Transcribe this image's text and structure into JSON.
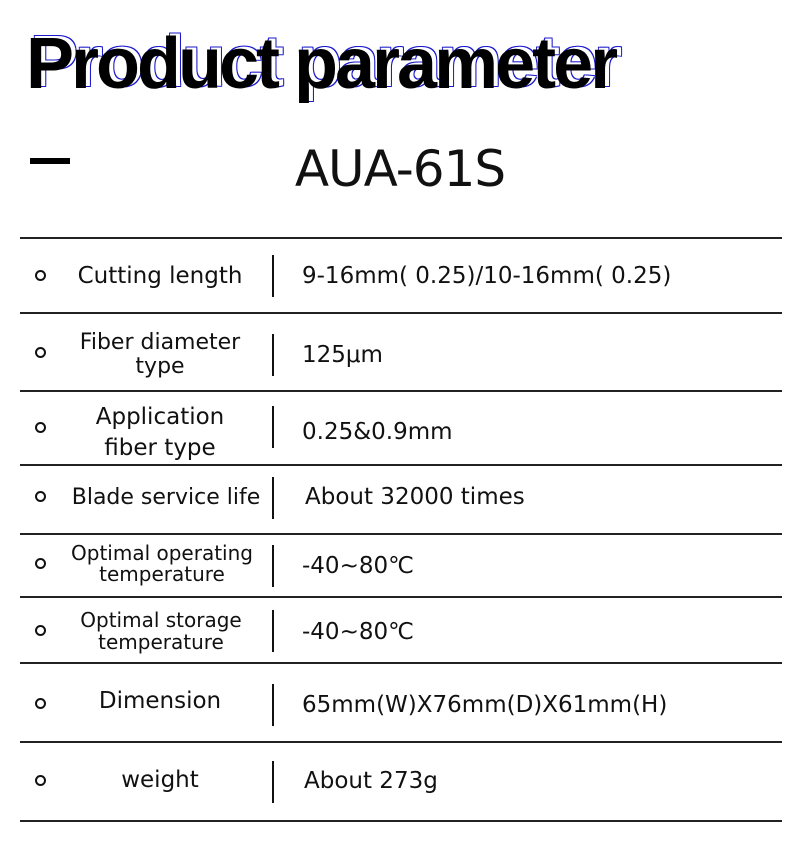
{
  "title": "Product parameter",
  "model": "AUA-61S",
  "rows": [
    {
      "label": "Cutting length",
      "value": "9-16mm(  0.25)/10-16mm(  0.25)"
    },
    {
      "label": "Fiber diameter type",
      "value": "125μm"
    },
    {
      "label": "Application fiber type",
      "value": "0.25&0.9mm"
    },
    {
      "label": "Blade service life",
      "value": "About 32000 times"
    },
    {
      "label": "Optimal operating temperature",
      "value": "-40~80℃"
    },
    {
      "label": "Optimal storage temperature",
      "value": "-40~80℃"
    },
    {
      "label": "Dimension",
      "value": "65mm(W)X76mm(D)X61mm(H)"
    },
    {
      "label": "weight",
      "value": "About 273g"
    }
  ]
}
